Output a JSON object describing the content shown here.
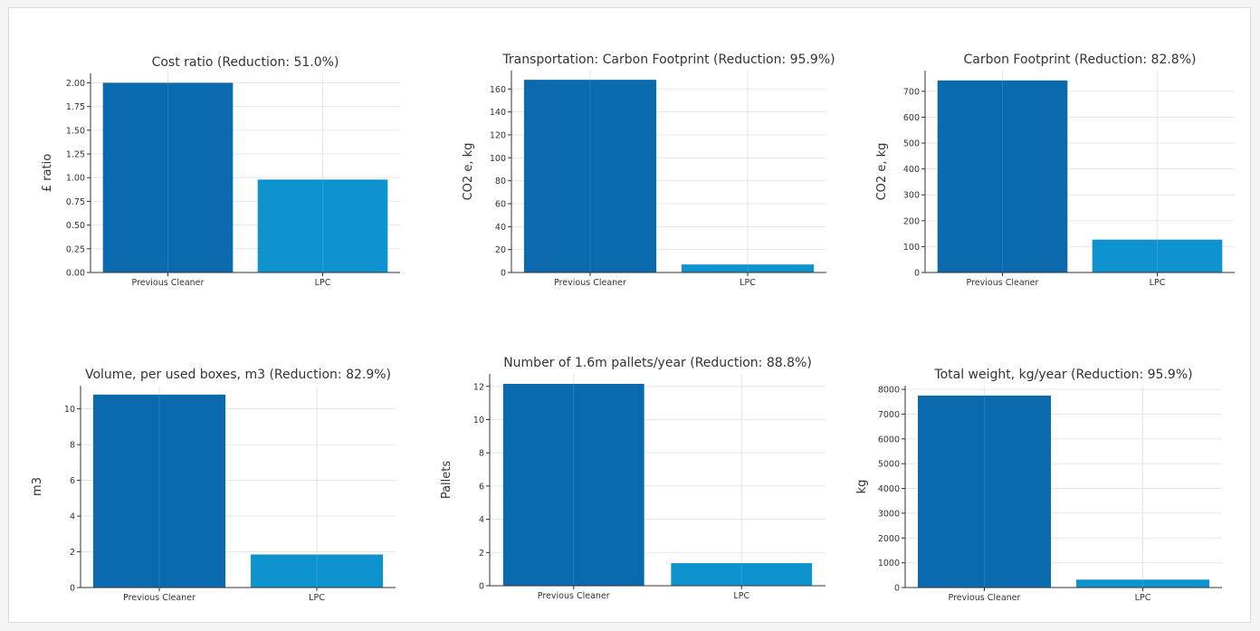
{
  "colors": {
    "previous": "#0a6aad",
    "lpc": "#0f93cf"
  },
  "chart_data": [
    {
      "type": "bar",
      "title": "Cost ratio (Reduction: 51.0%)",
      "xlabel": "",
      "ylabel": "£ ratio",
      "categories": [
        "Previous Cleaner",
        "LPC"
      ],
      "values": [
        2.0,
        0.98
      ],
      "ylim": [
        0,
        2.1
      ],
      "yticks": [
        "0.00",
        "0.25",
        "0.50",
        "0.75",
        "1.00",
        "1.25",
        "1.50",
        "1.75",
        "2.00"
      ],
      "grid": true
    },
    {
      "type": "bar",
      "title": "Transportation: Carbon Footprint (Reduction: 95.9%)",
      "xlabel": "",
      "ylabel": "CO2 e, kg",
      "categories": [
        "Previous Cleaner",
        "LPC"
      ],
      "values": [
        168,
        7
      ],
      "ylim": [
        0,
        176
      ],
      "yticks": [
        "0",
        "20",
        "40",
        "60",
        "80",
        "100",
        "120",
        "140",
        "160"
      ],
      "grid": true
    },
    {
      "type": "bar",
      "title": "Carbon Footprint (Reduction: 82.8%)",
      "xlabel": "",
      "ylabel": "CO2 e, kg",
      "categories": [
        "Previous Cleaner",
        "LPC"
      ],
      "values": [
        742,
        127
      ],
      "ylim": [
        0,
        780
      ],
      "yticks": [
        "0",
        "100",
        "200",
        "300",
        "400",
        "500",
        "600",
        "700"
      ],
      "grid": true
    },
    {
      "type": "bar",
      "title": "Volume, per used boxes, m3 (Reduction: 82.9%)",
      "xlabel": "",
      "ylabel": "m3",
      "categories": [
        "Previous Cleaner",
        "LPC"
      ],
      "values": [
        10.8,
        1.85
      ],
      "ylim": [
        0,
        11.3
      ],
      "yticks": [
        "0",
        "2",
        "4",
        "6",
        "8",
        "10"
      ],
      "grid": true
    },
    {
      "type": "bar",
      "title": "Number of 1.6m pallets/year (Reduction: 88.8%)",
      "xlabel": "",
      "ylabel": "Pallets",
      "categories": [
        "Previous Cleaner",
        "LPC"
      ],
      "values": [
        12.15,
        1.36
      ],
      "ylim": [
        0,
        12.75
      ],
      "yticks": [
        "0",
        "2",
        "4",
        "6",
        "8",
        "10",
        "12"
      ],
      "grid": true
    },
    {
      "type": "bar",
      "title": "Total weight, kg/year (Reduction: 95.9%)",
      "xlabel": "",
      "ylabel": "kg",
      "categories": [
        "Previous Cleaner",
        "LPC"
      ],
      "values": [
        7750,
        320
      ],
      "ylim": [
        0,
        8150
      ],
      "yticks": [
        "0",
        "1000",
        "2000",
        "3000",
        "4000",
        "5000",
        "6000",
        "7000",
        "8000"
      ],
      "grid": true
    }
  ]
}
